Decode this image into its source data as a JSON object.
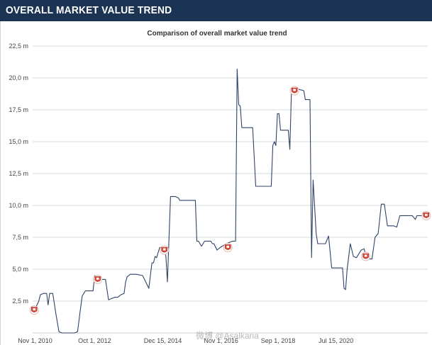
{
  "header": {
    "title": "OVERALL MARKET VALUE TREND"
  },
  "watermark": "微博 @Asalkana",
  "colors": {
    "header_bg": "#1c3454",
    "line": "#2f4468",
    "grid": "#d6d9de",
    "badge": "#d94a3a"
  },
  "chart_data": {
    "type": "line",
    "title": "Comparison of overall market value trend",
    "xlabel": "",
    "ylabel": "",
    "ylim": [
      0,
      22.5
    ],
    "grid": true,
    "x_ticks": [
      "Nov 1, 2010",
      "Oct 1, 2012",
      "Dec 15, 2014",
      "Nov 1, 2016",
      "Sep 1, 2018",
      "Jul 15, 2020"
    ],
    "y_ticks": [
      "2,5 m",
      "5,0 m",
      "7,5 m",
      "10,0 m",
      "12,5 m",
      "15,0 m",
      "17,5 m",
      "20,0 m",
      "22,5 m"
    ],
    "series": [
      {
        "points": [
          [
            2010.75,
            1.8
          ],
          [
            2010.85,
            2.0
          ],
          [
            2010.95,
            2.5
          ],
          [
            2011.0,
            3.0
          ],
          [
            2011.1,
            3.1
          ],
          [
            2011.2,
            3.1
          ],
          [
            2011.25,
            2.2
          ],
          [
            2011.3,
            3.1
          ],
          [
            2011.4,
            3.1
          ],
          [
            2011.5,
            1.5
          ],
          [
            2011.6,
            0.1
          ],
          [
            2011.7,
            0.0
          ],
          [
            2011.9,
            0.0
          ],
          [
            2012.1,
            0.0
          ],
          [
            2012.2,
            0.1
          ],
          [
            2012.3,
            2.0
          ],
          [
            2012.35,
            2.9
          ],
          [
            2012.45,
            3.3
          ],
          [
            2012.6,
            3.3
          ],
          [
            2012.7,
            3.3
          ],
          [
            2012.75,
            4.5
          ],
          [
            2012.85,
            4.2
          ],
          [
            2013.0,
            4.2
          ],
          [
            2013.1,
            4.2
          ],
          [
            2013.2,
            2.6
          ],
          [
            2013.3,
            2.7
          ],
          [
            2013.4,
            2.8
          ],
          [
            2013.5,
            2.8
          ],
          [
            2013.6,
            3.0
          ],
          [
            2013.7,
            3.1
          ],
          [
            2013.75,
            4.0
          ],
          [
            2013.8,
            4.4
          ],
          [
            2013.9,
            4.6
          ],
          [
            2014.1,
            4.6
          ],
          [
            2014.3,
            4.5
          ],
          [
            2014.5,
            3.5
          ],
          [
            2014.6,
            5.5
          ],
          [
            2014.65,
            5.5
          ],
          [
            2014.7,
            6.0
          ],
          [
            2014.75,
            5.9
          ],
          [
            2014.85,
            6.7
          ],
          [
            2014.95,
            6.7
          ],
          [
            2015.0,
            6.5
          ],
          [
            2015.05,
            6.0
          ],
          [
            2015.1,
            4.0
          ],
          [
            2015.2,
            10.7
          ],
          [
            2015.35,
            10.7
          ],
          [
            2015.45,
            10.6
          ],
          [
            2015.5,
            10.4
          ],
          [
            2015.8,
            10.4
          ],
          [
            2016.0,
            10.4
          ],
          [
            2016.05,
            7.2
          ],
          [
            2016.1,
            7.2
          ],
          [
            2016.2,
            6.8
          ],
          [
            2016.3,
            7.2
          ],
          [
            2016.5,
            7.2
          ],
          [
            2016.55,
            7.0
          ],
          [
            2016.6,
            7.0
          ],
          [
            2016.7,
            6.5
          ],
          [
            2016.8,
            6.7
          ],
          [
            2017.0,
            7.0
          ],
          [
            2017.2,
            7.2
          ],
          [
            2017.3,
            7.2
          ],
          [
            2017.35,
            20.7
          ],
          [
            2017.4,
            17.9
          ],
          [
            2017.45,
            17.8
          ],
          [
            2017.5,
            16.1
          ],
          [
            2017.6,
            16.1
          ],
          [
            2017.85,
            16.1
          ],
          [
            2017.95,
            11.5
          ],
          [
            2018.2,
            11.5
          ],
          [
            2018.45,
            11.5
          ],
          [
            2018.5,
            14.7
          ],
          [
            2018.55,
            15.0
          ],
          [
            2018.6,
            14.7
          ],
          [
            2018.65,
            17.2
          ],
          [
            2018.7,
            17.2
          ],
          [
            2018.75,
            15.9
          ],
          [
            2019.0,
            15.9
          ],
          [
            2019.05,
            14.4
          ],
          [
            2019.1,
            18.9
          ],
          [
            2019.2,
            19.0
          ],
          [
            2019.35,
            19.1
          ],
          [
            2019.5,
            19.0
          ],
          [
            2019.55,
            18.3
          ],
          [
            2019.7,
            18.3
          ],
          [
            2019.75,
            5.9
          ],
          [
            2019.8,
            12.0
          ],
          [
            2019.9,
            7.8
          ],
          [
            2019.95,
            7.0
          ],
          [
            2020.2,
            7.0
          ],
          [
            2020.3,
            7.6
          ],
          [
            2020.4,
            5.1
          ],
          [
            2020.6,
            5.1
          ],
          [
            2020.75,
            5.1
          ],
          [
            2020.8,
            3.5
          ],
          [
            2020.85,
            3.4
          ],
          [
            2020.9,
            5.0
          ],
          [
            2021.0,
            7.0
          ],
          [
            2021.1,
            6.0
          ],
          [
            2021.2,
            5.9
          ],
          [
            2021.35,
            6.5
          ],
          [
            2021.45,
            6.6
          ],
          [
            2021.5,
            6.0
          ],
          [
            2021.55,
            5.8
          ],
          [
            2021.7,
            5.8
          ],
          [
            2021.8,
            7.5
          ],
          [
            2021.9,
            7.8
          ],
          [
            2022.0,
            10.1
          ],
          [
            2022.1,
            10.1
          ],
          [
            2022.2,
            8.4
          ],
          [
            2022.4,
            8.4
          ],
          [
            2022.5,
            8.3
          ],
          [
            2022.6,
            9.2
          ],
          [
            2022.8,
            9.2
          ],
          [
            2023.0,
            9.2
          ],
          [
            2023.1,
            8.9
          ],
          [
            2023.15,
            9.2
          ],
          [
            2023.35,
            9.2
          ],
          [
            2023.45,
            9.2
          ]
        ]
      }
    ],
    "markers": [
      [
        2010.8,
        1.8
      ],
      [
        2012.85,
        4.2
      ],
      [
        2015.0,
        6.5
      ],
      [
        2017.05,
        6.7
      ],
      [
        2019.2,
        19.0
      ],
      [
        2021.5,
        6.0
      ],
      [
        2023.45,
        9.2
      ]
    ]
  }
}
